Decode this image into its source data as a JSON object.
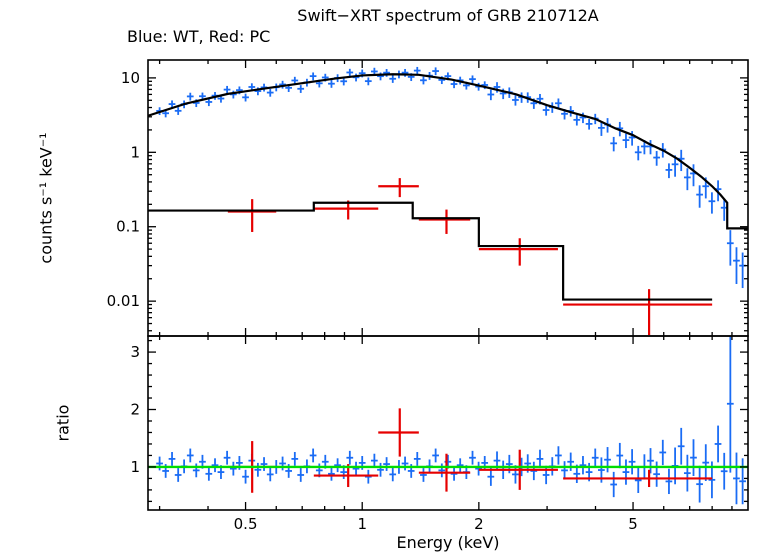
{
  "chart_data": {
    "type": "scatter",
    "title": "Swift−XRT spectrum of GRB 210712A",
    "subtitle": "Blue: WT, Red: PC",
    "xlabel": "Energy (keV)",
    "x_axis": {
      "scale": "log",
      "range": [
        0.28,
        9.9
      ],
      "major_ticks": [
        0.5,
        1,
        2,
        5
      ],
      "tick_labels": [
        "0.5",
        "1",
        "2",
        "5"
      ],
      "minor_ticks": [
        0.3,
        0.4,
        0.6,
        0.7,
        0.8,
        0.9,
        3,
        4,
        6,
        7,
        8,
        9
      ]
    },
    "panels": [
      {
        "name": "spectrum",
        "ylabel": "counts s⁻¹ keV⁻¹",
        "yscale": "log",
        "ylim": [
          0.0034,
          17.4
        ],
        "yticks": [
          0.01,
          0.1,
          1,
          10
        ],
        "ytick_labels": [
          "0.01",
          "0.1",
          "1",
          "10"
        ]
      },
      {
        "name": "ratio",
        "ylabel": "ratio",
        "yscale": "linear",
        "ylim": [
          0.25,
          3.28
        ],
        "yticks": [
          1,
          2,
          3
        ],
        "ytick_labels": [
          "1",
          "2",
          "3"
        ]
      }
    ],
    "colors": {
      "wt": "#1a6cf5",
      "pc": "#e60000",
      "model": "#000000",
      "unity": "#00dd00",
      "frame": "#000000",
      "background": "#ffffff"
    },
    "series": {
      "wt": {
        "label": "WT",
        "xerr_frac": 0.02,
        "x": [
          0.3,
          0.311,
          0.323,
          0.335,
          0.347,
          0.36,
          0.373,
          0.387,
          0.402,
          0.417,
          0.432,
          0.448,
          0.465,
          0.482,
          0.5,
          0.519,
          0.538,
          0.558,
          0.579,
          0.6,
          0.623,
          0.646,
          0.67,
          0.694,
          0.72,
          0.747,
          0.775,
          0.803,
          0.833,
          0.864,
          0.896,
          0.929,
          0.964,
          1.0,
          1.037,
          1.075,
          1.115,
          1.156,
          1.199,
          1.244,
          1.29,
          1.338,
          1.387,
          1.439,
          1.492,
          1.547,
          1.605,
          1.664,
          1.726,
          1.79,
          1.857,
          1.926,
          1.997,
          2.071,
          2.148,
          2.228,
          2.311,
          2.397,
          2.486,
          2.578,
          2.674,
          2.773,
          2.876,
          2.983,
          3.094,
          3.209,
          3.328,
          3.452,
          3.58,
          3.713,
          3.851,
          3.994,
          4.143,
          4.297,
          4.457,
          4.622,
          4.794,
          4.972,
          5.157,
          5.349,
          5.547,
          5.753,
          5.967,
          6.189,
          6.419,
          6.657,
          6.905,
          7.161,
          7.427,
          7.703,
          7.99,
          8.287,
          8.595,
          8.914,
          9.245,
          9.589
        ],
        "y": [
          3.6,
          3.35,
          4.45,
          3.61,
          4.44,
          5.64,
          4.61,
          5.67,
          4.75,
          5.77,
          5.28,
          6.96,
          6.01,
          6.85,
          5.48,
          7.55,
          6.65,
          7.46,
          6.35,
          7.5,
          8.16,
          7.35,
          9.23,
          7.14,
          8.69,
          10.56,
          8.46,
          10.14,
          8.36,
          9.99,
          9.01,
          11.83,
          10.19,
          11.56,
          9.05,
          12.21,
          10.55,
          11.76,
          9.74,
          11.2,
          11.77,
          10.32,
          12.54,
          9.29,
          10.71,
          12.36,
          9.4,
          10.57,
          8.27,
          9.27,
          7.92,
          9.63,
          7.66,
          8.03,
          5.98,
          7.55,
          6.18,
          6.41,
          5.05,
          5.5,
          5.51,
          4.56,
          5.24,
          3.7,
          4.04,
          4.56,
          3.29,
          3.6,
          2.73,
          2.94,
          2.41,
          2.84,
          2.13,
          2.36,
          1.32,
          2.1,
          1.46,
          1.58,
          1.0,
          1.2,
          1.2,
          0.85,
          1.09,
          0.58,
          0.69,
          0.82,
          0.46,
          0.52,
          0.27,
          0.35,
          0.22,
          0.32,
          0.18,
          0.06,
          0.035,
          0.03
        ],
        "yerr": [
          0.43,
          0.4,
          0.53,
          0.43,
          0.53,
          0.68,
          0.55,
          0.68,
          0.57,
          0.69,
          0.63,
          0.84,
          0.72,
          0.82,
          0.66,
          0.91,
          0.8,
          0.9,
          0.76,
          0.9,
          0.98,
          0.88,
          1.11,
          0.86,
          1.04,
          1.27,
          1.02,
          1.22,
          1.0,
          1.2,
          1.08,
          1.42,
          1.22,
          1.39,
          1.09,
          1.47,
          1.27,
          1.41,
          1.17,
          1.34,
          1.41,
          1.24,
          1.5,
          1.11,
          1.29,
          1.48,
          1.13,
          1.27,
          0.99,
          1.11,
          0.95,
          1.16,
          0.92,
          0.96,
          0.96,
          1.21,
          0.99,
          1.03,
          0.81,
          0.88,
          0.88,
          0.73,
          0.84,
          0.59,
          0.65,
          0.73,
          0.53,
          0.58,
          0.44,
          0.47,
          0.39,
          0.45,
          0.47,
          0.52,
          0.29,
          0.46,
          0.32,
          0.35,
          0.22,
          0.26,
          0.26,
          0.19,
          0.24,
          0.13,
          0.22,
          0.26,
          0.15,
          0.17,
          0.09,
          0.11,
          0.07,
          0.1,
          0.06,
          0.03,
          0.018,
          0.015
        ],
        "ratio": [
          1.06,
          0.93,
          1.14,
          0.86,
          1.01,
          1.2,
          0.94,
          1.09,
          0.88,
          1.03,
          0.91,
          1.16,
          0.97,
          1.07,
          0.83,
          1.11,
          0.95,
          1.05,
          0.87,
          1.0,
          1.06,
          0.93,
          1.14,
          0.86,
          1.01,
          1.2,
          0.94,
          1.09,
          0.88,
          1.03,
          0.91,
          1.16,
          0.97,
          1.07,
          0.83,
          1.11,
          0.95,
          1.05,
          0.87,
          1.0,
          1.06,
          0.93,
          1.14,
          0.86,
          1.01,
          1.2,
          0.94,
          1.09,
          0.88,
          1.03,
          0.91,
          1.16,
          0.97,
          1.07,
          0.83,
          1.11,
          0.95,
          1.05,
          0.87,
          1.0,
          1.06,
          0.93,
          1.14,
          0.86,
          1.01,
          1.2,
          0.94,
          1.09,
          0.88,
          1.03,
          0.91,
          1.16,
          0.946,
          1.126,
          0.694,
          1.198,
          0.91,
          1.09,
          0.766,
          1.0,
          1.108,
          0.874,
          1.252,
          0.748,
          1.018,
          1.36,
          0.892,
          1.162,
          0.7,
          1.075,
          0.775,
          1.4,
          0.925,
          2.1,
          0.8,
          0.75
        ],
        "ratio_err": [
          0.12,
          0.12,
          0.12,
          0.12,
          0.12,
          0.12,
          0.12,
          0.12,
          0.12,
          0.12,
          0.12,
          0.12,
          0.12,
          0.12,
          0.12,
          0.12,
          0.12,
          0.12,
          0.12,
          0.12,
          0.12,
          0.12,
          0.12,
          0.12,
          0.12,
          0.12,
          0.12,
          0.12,
          0.12,
          0.12,
          0.12,
          0.12,
          0.12,
          0.12,
          0.12,
          0.12,
          0.12,
          0.12,
          0.12,
          0.12,
          0.12,
          0.12,
          0.12,
          0.12,
          0.12,
          0.12,
          0.12,
          0.12,
          0.12,
          0.12,
          0.12,
          0.12,
          0.12,
          0.12,
          0.16,
          0.16,
          0.16,
          0.16,
          0.16,
          0.16,
          0.16,
          0.16,
          0.16,
          0.16,
          0.16,
          0.16,
          0.16,
          0.16,
          0.16,
          0.16,
          0.16,
          0.16,
          0.22,
          0.22,
          0.22,
          0.22,
          0.22,
          0.22,
          0.22,
          0.22,
          0.22,
          0.22,
          0.22,
          0.22,
          0.32,
          0.32,
          0.32,
          0.32,
          0.32,
          0.32,
          0.32,
          0.32,
          0.32,
          1.2,
          0.45,
          0.4
        ]
      },
      "pc": {
        "label": "PC",
        "x": [
          0.52,
          0.92,
          1.25,
          1.65,
          2.55,
          5.5
        ],
        "xerr_lo": [
          0.07,
          0.17,
          0.15,
          0.25,
          0.55,
          2.2
        ],
        "xerr_hi": [
          0.08,
          0.18,
          0.15,
          0.25,
          0.65,
          2.5
        ],
        "y": [
          0.16,
          0.175,
          0.35,
          0.125,
          0.05,
          0.009
        ],
        "yerr": [
          0.075,
          0.05,
          0.1,
          0.045,
          0.02,
          0.0055
        ],
        "ratio": [
          1.0,
          0.85,
          1.6,
          0.9,
          0.95,
          0.8
        ],
        "ratio_err": [
          0.45,
          0.2,
          0.42,
          0.33,
          0.35,
          0.15
        ]
      },
      "wt_model": {
        "x": [
          0.28,
          0.35,
          0.45,
          0.55,
          0.7,
          0.85,
          1.0,
          1.2,
          1.4,
          1.7,
          2.0,
          2.5,
          3.0,
          3.5,
          4.0,
          4.5,
          5.0,
          5.5,
          6.0,
          6.5,
          7.0,
          7.5,
          8.0,
          8.4,
          8.75,
          8.75,
          9.9
        ],
        "y": [
          3.1,
          4.5,
          6.1,
          7.1,
          8.5,
          9.8,
          10.8,
          11.2,
          11.0,
          9.5,
          7.9,
          6.0,
          4.3,
          3.4,
          2.8,
          2.1,
          1.7,
          1.3,
          1.05,
          0.82,
          0.62,
          0.47,
          0.35,
          0.27,
          0.21,
          0.095,
          0.095
        ]
      },
      "pc_model_steps": [
        [
          0.28,
          0.75,
          0.165
        ],
        [
          0.75,
          1.35,
          0.21
        ],
        [
          1.35,
          2.0,
          0.13
        ],
        [
          2.0,
          3.3,
          0.055
        ],
        [
          3.3,
          8.0,
          0.0105
        ]
      ],
      "unity_line": {
        "value": 1
      }
    }
  }
}
